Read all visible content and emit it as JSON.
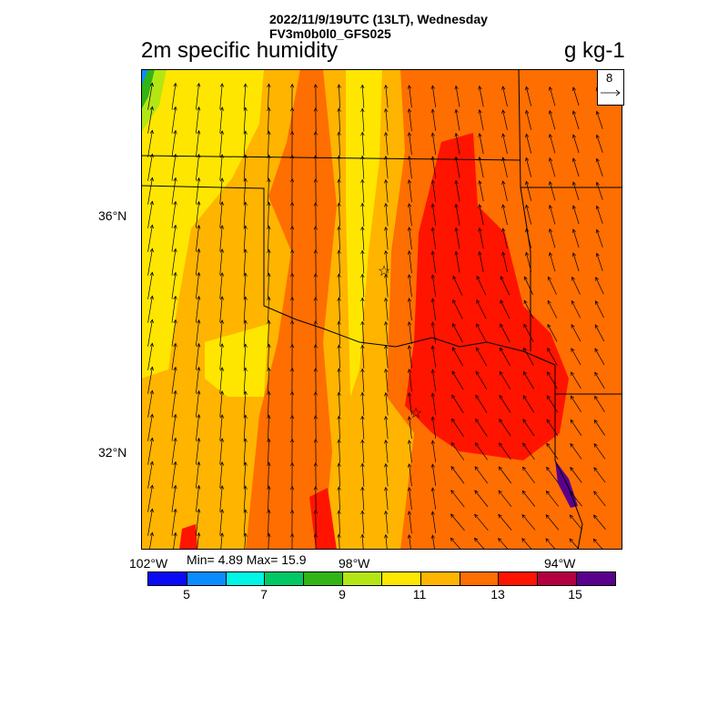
{
  "header": {
    "datetime": "2022/11/9/19UTC (13LT), Wednesday",
    "model": "FV3m0b0l0_GFS025"
  },
  "title": "2m specific humidity",
  "units": "g kg-1",
  "stats": "Min= 4.89 Max= 15.9",
  "axes": {
    "lat_labels": [
      "36°N",
      "32°N"
    ],
    "lon_labels": [
      "102°W",
      "98°W",
      "94°W"
    ]
  },
  "reference_vector": "8",
  "colorbar": {
    "colors": [
      "#0a0af5",
      "#0a8cff",
      "#00f5e6",
      "#00c864",
      "#32b414",
      "#b4e614",
      "#ffe600",
      "#ffb400",
      "#ff6e00",
      "#ff1400",
      "#b40040",
      "#5a008c"
    ],
    "labels": [
      "5",
      "7",
      "9",
      "11",
      "13",
      "15"
    ]
  }
}
